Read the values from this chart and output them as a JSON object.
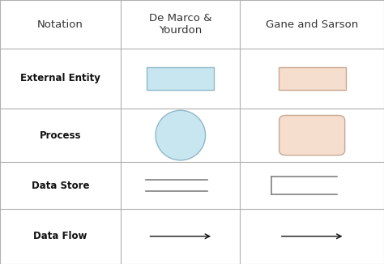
{
  "bg_color": "#ffffff",
  "grid_color": "#b0b0b0",
  "col_boundaries": [
    0.0,
    0.315,
    0.625,
    1.0
  ],
  "row_boundaries": [
    0.0,
    0.185,
    0.41,
    0.615,
    0.79,
    1.0
  ],
  "headers": [
    "Notation",
    "De Marco &\nYourdon",
    "Gane and Sarson"
  ],
  "row_labels": [
    "External Entity",
    "Process",
    "Data Store",
    "Data Flow"
  ],
  "light_blue": "#c8e6f0",
  "light_peach": "#f5dece",
  "border_blue": "#90b8c8",
  "border_peach": "#c8a890",
  "line_gray": "#808080",
  "arrow_color": "#111111",
  "header_fontsize": 9.5,
  "label_fontsize": 8.5
}
